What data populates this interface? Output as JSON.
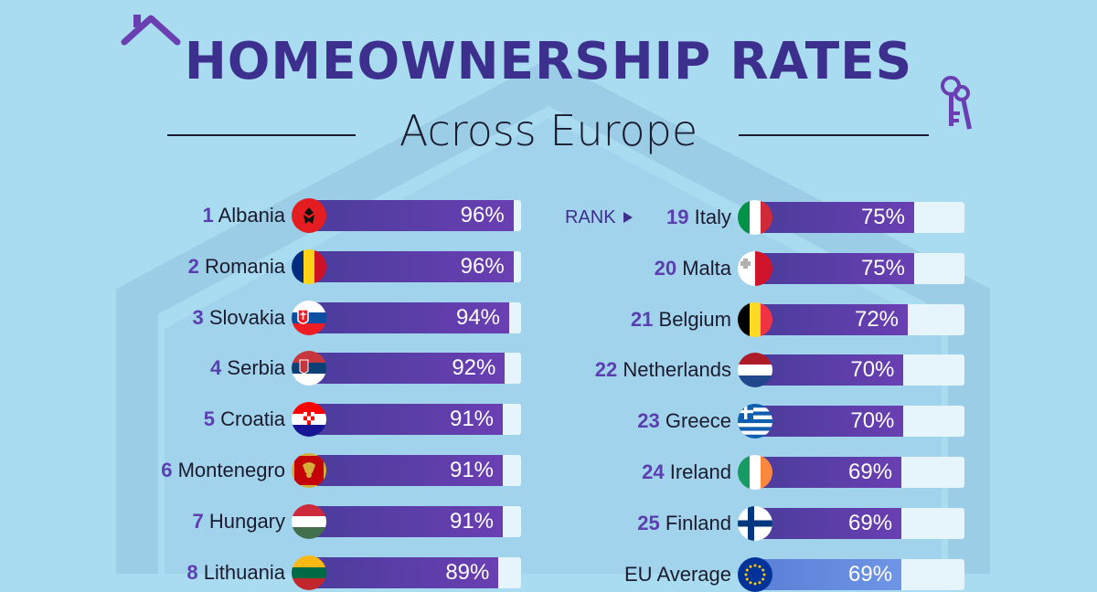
{
  "title": "HOMEOWNERSHIP RATES",
  "subtitle": "Across Europe",
  "rank_cue": "RANK",
  "colors": {
    "background": "#a9dcf0",
    "title": "#3d2f8e",
    "bar": "#4b3c9c",
    "bar_eu": "#5a7fd6",
    "track": "#e6f4fb",
    "rank_number": "#5b3fb0"
  },
  "icons": [
    "house-roof-icon",
    "keys-icon",
    "rank-arrow-icon"
  ],
  "chart_data": {
    "type": "bar",
    "orientation": "horizontal",
    "value_unit": "%",
    "xlim": [
      0,
      100
    ],
    "left_column": [
      {
        "rank": "1",
        "country": "Albania",
        "value": 96,
        "label": "96%",
        "flag": "albania-flag-icon"
      },
      {
        "rank": "2",
        "country": "Romania",
        "value": 96,
        "label": "96%",
        "flag": "romania-flag-icon"
      },
      {
        "rank": "3",
        "country": "Slovakia",
        "value": 94,
        "label": "94%",
        "flag": "slovakia-flag-icon"
      },
      {
        "rank": "4",
        "country": "Serbia",
        "value": 92,
        "label": "92%",
        "flag": "serbia-flag-icon"
      },
      {
        "rank": "5",
        "country": "Croatia",
        "value": 91,
        "label": "91%",
        "flag": "croatia-flag-icon"
      },
      {
        "rank": "6",
        "country": "Montenegro",
        "value": 91,
        "label": "91%",
        "flag": "montenegro-flag-icon"
      },
      {
        "rank": "7",
        "country": "Hungary",
        "value": 91,
        "label": "91%",
        "flag": "hungary-flag-icon"
      },
      {
        "rank": "8",
        "country": "Lithuania",
        "value": 89,
        "label": "89%",
        "flag": "lithuania-flag-icon"
      }
    ],
    "right_column": [
      {
        "rank": "19",
        "country": "Italy",
        "value": 75,
        "label": "75%",
        "flag": "italy-flag-icon"
      },
      {
        "rank": "20",
        "country": "Malta",
        "value": 75,
        "label": "75%",
        "flag": "malta-flag-icon"
      },
      {
        "rank": "21",
        "country": "Belgium",
        "value": 72,
        "label": "72%",
        "flag": "belgium-flag-icon"
      },
      {
        "rank": "22",
        "country": "Netherlands",
        "value": 70,
        "label": "70%",
        "flag": "netherlands-flag-icon"
      },
      {
        "rank": "23",
        "country": "Greece",
        "value": 70,
        "label": "70%",
        "flag": "greece-flag-icon"
      },
      {
        "rank": "24",
        "country": "Ireland",
        "value": 69,
        "label": "69%",
        "flag": "ireland-flag-icon"
      },
      {
        "rank": "25",
        "country": "Finland",
        "value": 69,
        "label": "69%",
        "flag": "finland-flag-icon"
      },
      {
        "rank": "",
        "country": "EU Average",
        "value": 69,
        "label": "69%",
        "flag": "eu-flag-icon"
      }
    ]
  }
}
